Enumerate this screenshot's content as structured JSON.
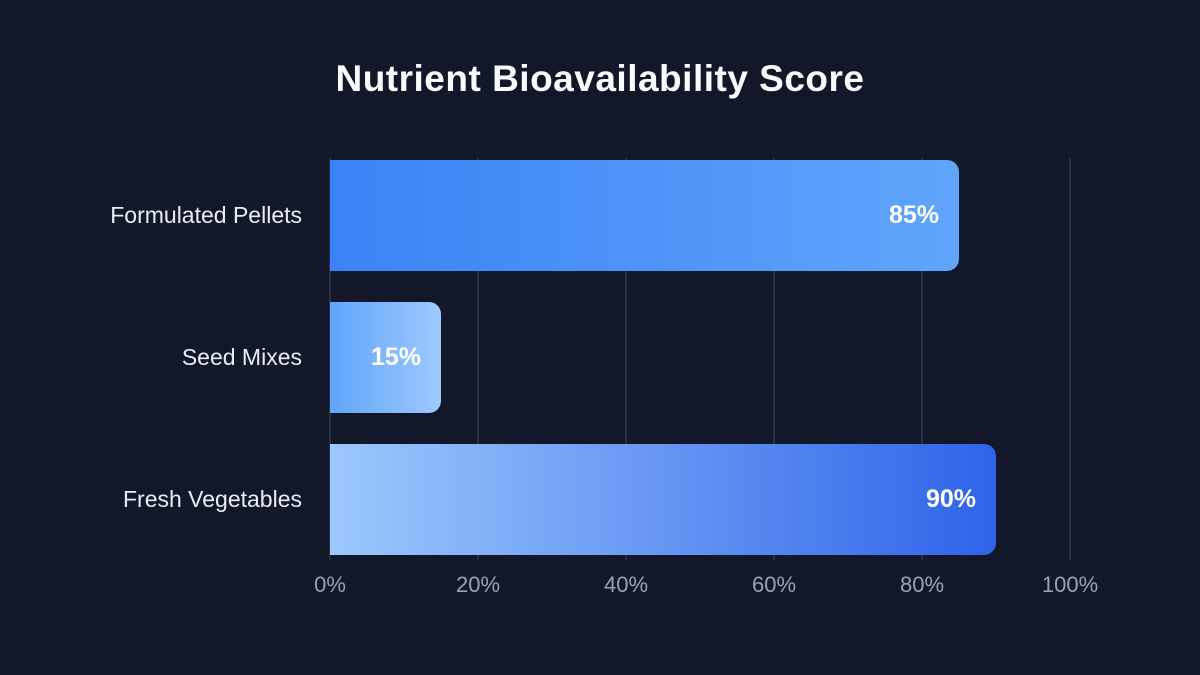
{
  "title": "Nutrient Bioavailability Score",
  "chart_data": {
    "type": "bar",
    "orientation": "horizontal",
    "title": "Nutrient Bioavailability Score",
    "categories": [
      "Formulated Pellets",
      "Seed Mixes",
      "Fresh Vegetables"
    ],
    "values": [
      85,
      15,
      90
    ],
    "value_labels": [
      "85%",
      "15%",
      "90%"
    ],
    "xlabel": "",
    "ylabel": "",
    "xlim": [
      0,
      100
    ],
    "x_ticks": [
      0,
      20,
      40,
      60,
      80,
      100
    ],
    "x_tick_labels": [
      "0%",
      "20%",
      "40%",
      "60%",
      "80%",
      "100%"
    ],
    "grid": "vertical-only",
    "legend": false,
    "colors": {
      "background": "#121829",
      "gridline": "#283247",
      "title_text": "#f8fafc",
      "category_label_text": "#e8edf4",
      "tick_label_text": "#94a3b8",
      "value_label_text": "#ffffff",
      "bar_gradients": [
        {
          "from": "#3b82f6",
          "to": "#60a5fa"
        },
        {
          "from": "#60a5fa",
          "to": "#9ec9fc"
        },
        {
          "from": "#9cc8fb",
          "to": "#2f63e9"
        }
      ]
    }
  }
}
